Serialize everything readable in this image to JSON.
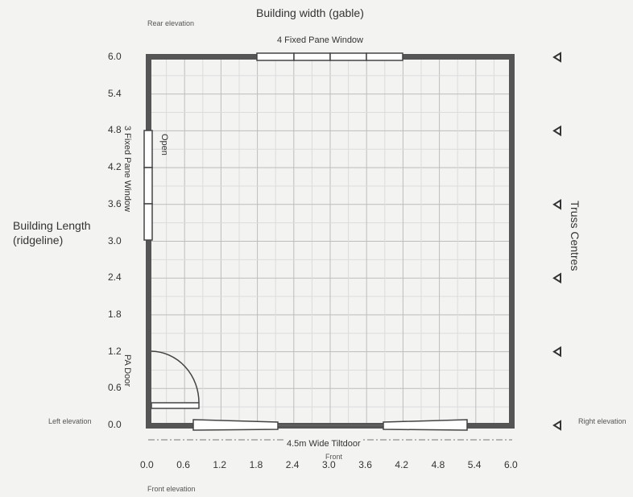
{
  "title": "Building width (gable)",
  "rear_elevation": "Rear elevation",
  "front_elevation": "Front elevation",
  "left_elevation": "Left elevation",
  "right_elevation": "Right elevation",
  "length_label_line1": "Building Length",
  "length_label_line2": "(ridgeline)",
  "truss_label": "Truss Centres",
  "front_label": "Front",
  "openings": {
    "rear_window": "4 Fixed Pane Window",
    "left_window": "3 Fixed Pane Window",
    "left_window_state": "Open",
    "pa_door": "PA Door",
    "tiltdoor": "4.5m Wide Tiltdoor"
  },
  "x_ticks": [
    "0.0",
    "0.6",
    "1.2",
    "1.8",
    "2.4",
    "3.0",
    "3.6",
    "4.2",
    "4.8",
    "5.4",
    "6.0"
  ],
  "y_ticks": [
    "0.0",
    "0.6",
    "1.2",
    "1.8",
    "2.4",
    "3.0",
    "3.6",
    "4.2",
    "4.8",
    "5.4",
    "6.0"
  ],
  "truss_marker_count": 6,
  "colors": {
    "wall": "#555555",
    "grid": "#bdbdbd",
    "background": "#f3f3f2"
  }
}
